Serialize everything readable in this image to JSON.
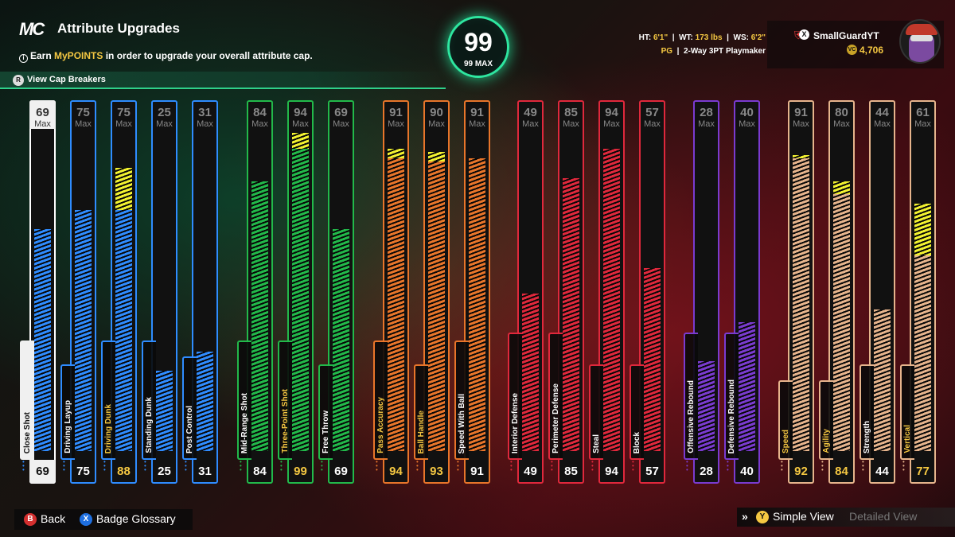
{
  "header": {
    "logo": "MC",
    "title": "Attribute Upgrades",
    "subtitle_pre": "Earn ",
    "subtitle_hl": "MyPOINTS",
    "subtitle_post": " in order to upgrade your overall attribute cap.",
    "cap_breakers_btn": "R",
    "cap_breakers": "View Cap Breakers"
  },
  "overall": {
    "value": "99",
    "max": "99 MAX"
  },
  "bio": {
    "ht_label": "HT:",
    "ht": "6'1\"",
    "wt_label": "WT:",
    "wt": "173 lbs",
    "ws_label": "WS:",
    "ws": "6'2\"",
    "position": "PG",
    "archetype": "2-Way 3PT Playmaker"
  },
  "profile": {
    "name": "SmallGuardYT",
    "vc": "4,706"
  },
  "max_label": "Max",
  "attributes": [
    {
      "label": "Close Shot",
      "max": "69",
      "value": "69",
      "base": 69,
      "target": 69,
      "color": "#2f8cff",
      "selected": true
    },
    {
      "label": "Driving Layup",
      "max": "75",
      "value": "75",
      "base": 75,
      "target": 75,
      "color": "#2f8cff"
    },
    {
      "label": "Driving Dunk",
      "max": "75",
      "value": "88",
      "base": 75,
      "target": 88,
      "color": "#2f8cff",
      "boosted": true
    },
    {
      "label": "Standing Dunk",
      "max": "25",
      "value": "25",
      "base": 25,
      "target": 25,
      "color": "#2f8cff"
    },
    {
      "label": "Post Control",
      "max": "31",
      "value": "31",
      "base": 31,
      "target": 31,
      "color": "#2f8cff"
    },
    {
      "label": "Mid-Range Shot",
      "max": "84",
      "value": "84",
      "base": 84,
      "target": 84,
      "color": "#22b94a"
    },
    {
      "label": "Three-Point Shot",
      "max": "94",
      "value": "99",
      "base": 94,
      "target": 99,
      "color": "#22b94a",
      "boosted": true
    },
    {
      "label": "Free Throw",
      "max": "69",
      "value": "69",
      "base": 69,
      "target": 69,
      "color": "#22b94a"
    },
    {
      "label": "Pass Accuracy",
      "max": "91",
      "value": "94",
      "base": 91,
      "target": 94,
      "color": "#e8752a",
      "boosted": true
    },
    {
      "label": "Ball Handle",
      "max": "90",
      "value": "93",
      "base": 90,
      "target": 93,
      "color": "#e8752a",
      "boosted": true
    },
    {
      "label": "Speed With Ball",
      "max": "91",
      "value": "91",
      "base": 91,
      "target": 91,
      "color": "#e8752a"
    },
    {
      "label": "Interior Defense",
      "max": "49",
      "value": "49",
      "base": 49,
      "target": 49,
      "color": "#e0283c"
    },
    {
      "label": "Perimeter Defense",
      "max": "85",
      "value": "85",
      "base": 85,
      "target": 85,
      "color": "#e0283c"
    },
    {
      "label": "Steal",
      "max": "94",
      "value": "94",
      "base": 94,
      "target": 94,
      "color": "#e0283c"
    },
    {
      "label": "Block",
      "max": "57",
      "value": "57",
      "base": 57,
      "target": 57,
      "color": "#e0283c"
    },
    {
      "label": "Offensive Rebound",
      "max": "28",
      "value": "28",
      "base": 28,
      "target": 28,
      "color": "#7a3bd0"
    },
    {
      "label": "Defensive Rebound",
      "max": "40",
      "value": "40",
      "base": 40,
      "target": 40,
      "color": "#7a3bd0"
    },
    {
      "label": "Speed",
      "max": "91",
      "value": "92",
      "base": 91,
      "target": 92,
      "color": "#e6b48c",
      "boosted": true
    },
    {
      "label": "Agility",
      "max": "80",
      "value": "84",
      "base": 80,
      "target": 84,
      "color": "#e6b48c",
      "boosted": true
    },
    {
      "label": "Strength",
      "max": "44",
      "value": "44",
      "base": 44,
      "target": 44,
      "color": "#e6b48c"
    },
    {
      "label": "Vertical",
      "max": "61",
      "value": "77",
      "base": 61,
      "target": 77,
      "color": "#e6b48c",
      "boosted": true
    }
  ],
  "footer": {
    "back_btn": "B",
    "back": "Back",
    "glossary_btn": "X",
    "glossary": "Badge Glossary",
    "simple_btn": "Y",
    "simple": "Simple View",
    "detailed": "Detailed View"
  }
}
